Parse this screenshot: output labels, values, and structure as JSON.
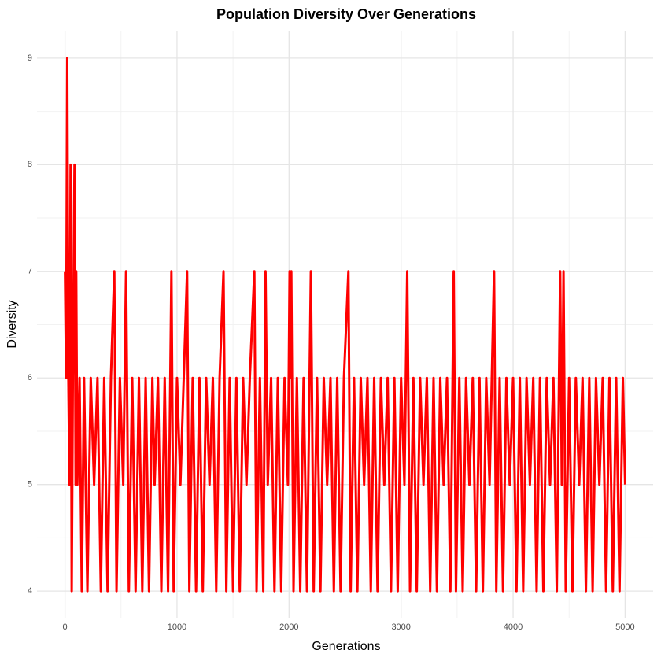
{
  "chart_data": {
    "type": "line",
    "title": "Population Diversity Over Generations",
    "x_label": "Generations",
    "y_label": "Diversity",
    "x": [
      0,
      10,
      20,
      30,
      40,
      50,
      60,
      70,
      85,
      95,
      100,
      110,
      130,
      150,
      170,
      200,
      230,
      260,
      290,
      320,
      350,
      380,
      410,
      440,
      460,
      490,
      520,
      545,
      570,
      600,
      630,
      660,
      690,
      720,
      750,
      780,
      800,
      830,
      860,
      890,
      920,
      950,
      970,
      1000,
      1030,
      1060,
      1090,
      1110,
      1140,
      1170,
      1200,
      1230,
      1260,
      1290,
      1320,
      1350,
      1380,
      1415,
      1440,
      1470,
      1500,
      1530,
      1560,
      1590,
      1620,
      1650,
      1690,
      1710,
      1740,
      1770,
      1790,
      1810,
      1840,
      1870,
      1900,
      1930,
      1960,
      1990,
      2005,
      2012,
      2020,
      2040,
      2070,
      2100,
      2130,
      2160,
      2195,
      2220,
      2250,
      2280,
      2310,
      2340,
      2370,
      2400,
      2430,
      2460,
      2490,
      2530,
      2550,
      2580,
      2610,
      2640,
      2670,
      2700,
      2730,
      2760,
      2790,
      2820,
      2850,
      2880,
      2910,
      2940,
      2970,
      3000,
      3030,
      3055,
      3080,
      3110,
      3140,
      3170,
      3200,
      3230,
      3260,
      3290,
      3320,
      3350,
      3380,
      3410,
      3440,
      3470,
      3490,
      3520,
      3550,
      3580,
      3610,
      3640,
      3670,
      3700,
      3730,
      3760,
      3790,
      3830,
      3850,
      3880,
      3910,
      3940,
      3970,
      4000,
      4030,
      4060,
      4090,
      4120,
      4150,
      4180,
      4210,
      4240,
      4270,
      4300,
      4330,
      4360,
      4390,
      4420,
      4435,
      4450,
      4470,
      4500,
      4530,
      4560,
      4590,
      4620,
      4650,
      4680,
      4710,
      4740,
      4770,
      4800,
      4830,
      4860,
      4890,
      4920,
      4950,
      4980,
      5000
    ],
    "series": [
      {
        "name": "Diversity",
        "color": "#ff0000",
        "values": [
          7,
          6,
          9,
          6,
          5,
          8,
          4,
          6,
          8,
          5,
          7,
          5,
          6,
          4,
          6,
          4,
          6,
          5,
          6,
          4,
          6,
          4,
          6,
          7,
          4,
          6,
          5,
          7,
          4,
          6,
          4,
          6,
          4,
          6,
          4,
          6,
          5,
          6,
          4,
          6,
          4,
          7,
          4,
          6,
          5,
          6,
          7,
          4,
          6,
          4,
          6,
          4,
          6,
          5,
          6,
          4,
          6,
          7,
          4,
          6,
          4,
          6,
          4,
          6,
          5,
          6,
          7,
          4,
          6,
          4,
          7,
          5,
          6,
          4,
          6,
          4,
          6,
          5,
          7,
          6,
          7,
          4,
          6,
          4,
          6,
          4,
          7,
          4,
          6,
          4,
          6,
          5,
          6,
          4,
          6,
          4,
          6,
          7,
          4,
          6,
          4,
          6,
          5,
          6,
          4,
          6,
          4,
          6,
          5,
          6,
          4,
          6,
          4,
          6,
          5,
          7,
          4,
          6,
          4,
          6,
          5,
          6,
          4,
          6,
          4,
          6,
          5,
          6,
          4,
          7,
          4,
          6,
          4,
          6,
          5,
          6,
          4,
          6,
          4,
          6,
          5,
          7,
          4,
          6,
          4,
          6,
          5,
          6,
          4,
          6,
          4,
          6,
          5,
          6,
          4,
          6,
          4,
          6,
          5,
          6,
          4,
          7,
          5,
          7,
          4,
          6,
          4,
          6,
          5,
          6,
          4,
          6,
          4,
          6,
          5,
          6,
          4,
          6,
          4,
          6,
          4,
          6,
          5
        ]
      }
    ],
    "xlim": [
      -250,
      5250
    ],
    "ylim": [
      3.75,
      9.25
    ],
    "xticks": [
      0,
      1000,
      2000,
      3000,
      4000,
      5000
    ],
    "yticks": [
      4,
      5,
      6,
      7,
      8,
      9
    ],
    "grid": true
  }
}
